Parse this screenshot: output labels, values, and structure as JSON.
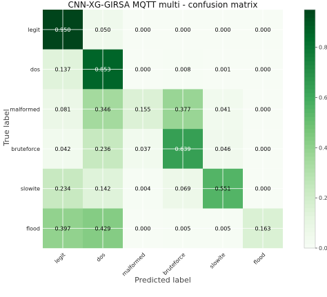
{
  "chart_data": {
    "type": "heatmap",
    "title": "CNN-XG-GIRSA MQTT multi -  confusion matrix",
    "xlabel": "Predicted label",
    "ylabel": "True label",
    "x_categories": [
      "legit",
      "dos",
      "malformed",
      "bruteforce",
      "slowite",
      "flood"
    ],
    "y_categories": [
      "legit",
      "dos",
      "malformed",
      "bruteforce",
      "slowite",
      "flood"
    ],
    "values": [
      [
        0.95,
        0.05,
        0.0,
        0.0,
        0.0,
        0.0
      ],
      [
        0.137,
        0.853,
        0.0,
        0.008,
        0.001,
        0.0
      ],
      [
        0.081,
        0.346,
        0.155,
        0.377,
        0.041,
        0.0
      ],
      [
        0.042,
        0.236,
        0.037,
        0.639,
        0.046,
        0.0
      ],
      [
        0.234,
        0.142,
        0.004,
        0.069,
        0.551,
        0.0
      ],
      [
        0.397,
        0.429,
        0.0,
        0.005,
        0.005,
        0.163
      ]
    ],
    "value_labels": [
      [
        "0.950",
        "0.050",
        "0.000",
        "0.000",
        "0.000",
        "0.000"
      ],
      [
        "0.137",
        "0.853",
        "0.000",
        "0.008",
        "0.001",
        "0.000"
      ],
      [
        "0.081",
        "0.346",
        "0.155",
        "0.377",
        "0.041",
        "0.000"
      ],
      [
        "0.042",
        "0.236",
        "0.037",
        "0.639",
        "0.046",
        "0.000"
      ],
      [
        "0.234",
        "0.142",
        "0.004",
        "0.069",
        "0.551",
        "0.000"
      ],
      [
        "0.397",
        "0.429",
        "0.000",
        "0.005",
        "0.005",
        "0.163"
      ]
    ],
    "colormap": "Greens",
    "colorbar": {
      "range": [
        0.0,
        0.95
      ],
      "tick_values": [
        0.0,
        0.2,
        0.4,
        0.6,
        0.8
      ],
      "tick_labels": [
        "0.0",
        "0.2",
        "0.4",
        "0.6",
        "0.8"
      ]
    },
    "grid": true
  }
}
